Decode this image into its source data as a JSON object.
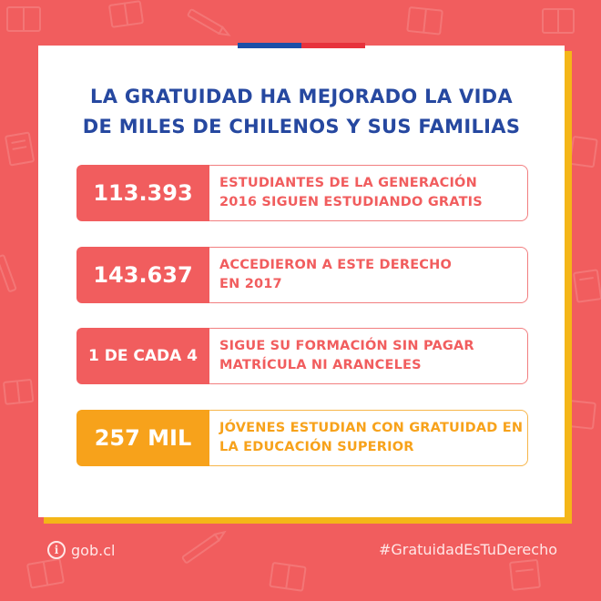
{
  "title": {
    "line1": "LA GRATUIDAD HA MEJORADO LA VIDA",
    "line2": "DE MILES DE CHILENOS Y SUS FAMILIAS"
  },
  "stats": [
    {
      "value": "113.393",
      "line1": "ESTUDIANTES DE LA GENERACIÓN",
      "line2": "2016 SIGUEN ESTUDIANDO GRATIS"
    },
    {
      "value": "143.637",
      "line1": "ACCEDIERON A ESTE DERECHO",
      "line2": "EN 2017"
    },
    {
      "value": "1 DE CADA 4",
      "line1": "SIGUE SU FORMACIÓN SIN PAGAR",
      "line2": "MATRÍCULA NI ARANCELES"
    },
    {
      "value": "257 MIL",
      "line1": "JÓVENES ESTUDIAN CON GRATUIDAD EN",
      "line2": "LA EDUCACIÓN SUPERIOR"
    }
  ],
  "footer": {
    "brand": "gob.cl",
    "info_icon_glyph": "i",
    "hashtag": "#GratuidadEsTuDerecho"
  },
  "colors": {
    "background": "#f15d5e",
    "title_blue": "#2648a0",
    "accent_red": "#f15d5e",
    "accent_orange": "#f7a21b",
    "card_shadow_yellow": "#f4b618",
    "flag_blue": "#1b4fa8",
    "flag_red": "#e7323c"
  }
}
